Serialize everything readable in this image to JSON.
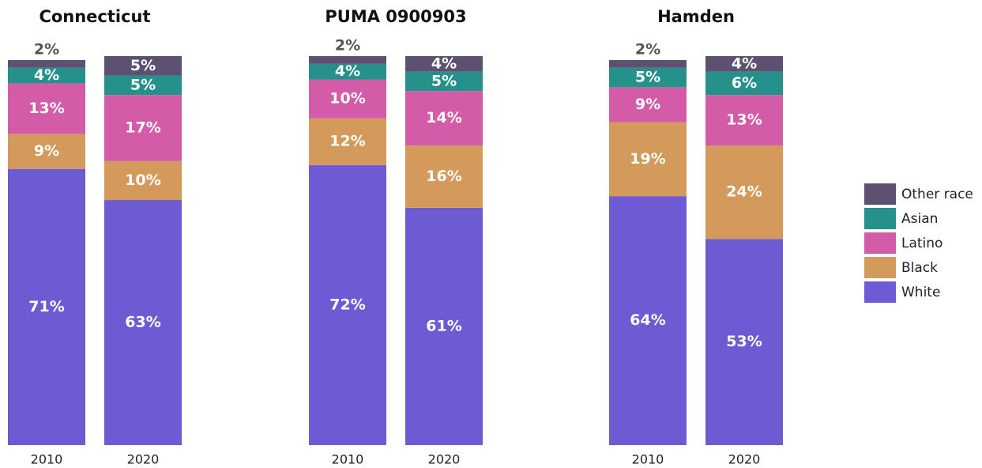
{
  "chart_data": [
    {
      "type": "stacked-bar",
      "title": "Connecticut",
      "categories": [
        "2010",
        "2020"
      ],
      "series": [
        {
          "name": "White",
          "color": "#6e5bd4",
          "values": [
            71,
            63
          ],
          "value_labels": [
            "71%",
            "63%"
          ]
        },
        {
          "name": "Black",
          "color": "#d49a5c",
          "values": [
            9,
            10
          ],
          "value_labels": [
            "9%",
            "10%"
          ]
        },
        {
          "name": "Latino",
          "color": "#d45ba8",
          "values": [
            13,
            17
          ],
          "value_labels": [
            "13%",
            "17%"
          ]
        },
        {
          "name": "Asian",
          "color": "#25918a",
          "values": [
            4,
            5
          ],
          "value_labels": [
            "4%",
            "5%"
          ]
        },
        {
          "name": "Other race",
          "color": "#5c5170",
          "values": [
            2,
            5
          ],
          "value_labels": [
            "2%",
            "5%"
          ]
        }
      ]
    },
    {
      "type": "stacked-bar",
      "title": "PUMA 0900903",
      "categories": [
        "2010",
        "2020"
      ],
      "series": [
        {
          "name": "White",
          "color": "#6e5bd4",
          "values": [
            72,
            61
          ],
          "value_labels": [
            "72%",
            "61%"
          ]
        },
        {
          "name": "Black",
          "color": "#d49a5c",
          "values": [
            12,
            16
          ],
          "value_labels": [
            "12%",
            "16%"
          ]
        },
        {
          "name": "Latino",
          "color": "#d45ba8",
          "values": [
            10,
            14
          ],
          "value_labels": [
            "10%",
            "14%"
          ]
        },
        {
          "name": "Asian",
          "color": "#25918a",
          "values": [
            4,
            5
          ],
          "value_labels": [
            "4%",
            "5%"
          ]
        },
        {
          "name": "Other race",
          "color": "#5c5170",
          "values": [
            2,
            4
          ],
          "value_labels": [
            "2%",
            "4%"
          ]
        }
      ]
    },
    {
      "type": "stacked-bar",
      "title": "Hamden",
      "categories": [
        "2010",
        "2020"
      ],
      "series": [
        {
          "name": "White",
          "color": "#6e5bd4",
          "values": [
            64,
            53
          ],
          "value_labels": [
            "64%",
            "53%"
          ]
        },
        {
          "name": "Black",
          "color": "#d49a5c",
          "values": [
            19,
            24
          ],
          "value_labels": [
            "19%",
            "24%"
          ]
        },
        {
          "name": "Latino",
          "color": "#d45ba8",
          "values": [
            9,
            13
          ],
          "value_labels": [
            "9%",
            "13%"
          ]
        },
        {
          "name": "Asian",
          "color": "#25918a",
          "values": [
            5,
            6
          ],
          "value_labels": [
            "5%",
            "6%"
          ]
        },
        {
          "name": "Other race",
          "color": "#5c5170",
          "values": [
            2,
            4
          ],
          "value_labels": [
            "2%",
            "4%"
          ]
        }
      ]
    }
  ]
}
